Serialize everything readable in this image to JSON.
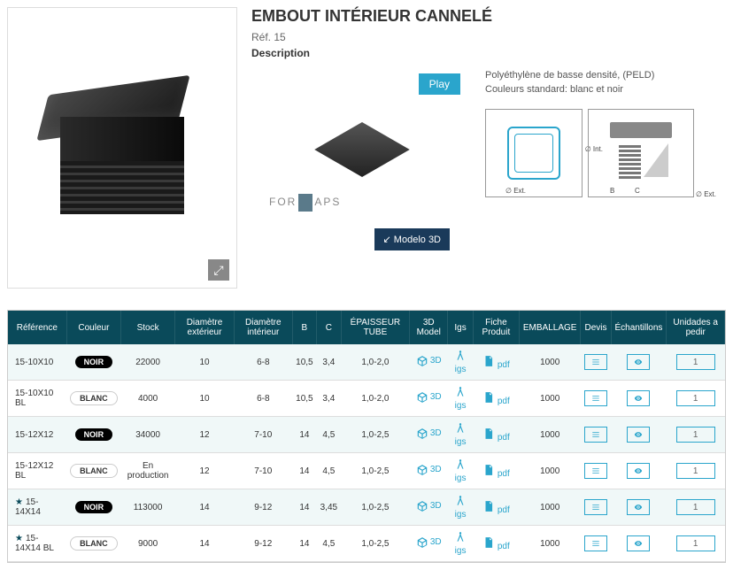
{
  "product": {
    "title": "EMBOUT INTÉRIEUR CANNELÉ",
    "ref": "Réf. 15",
    "desc_label": "Description",
    "play": "Play",
    "brand": "FOR APS",
    "model3d": "↙ Modelo 3D",
    "material": "Polyéthylène de basse densité, (PELD)",
    "colors": "Couleurs standard: blanc et noir",
    "diag": {
      "int": "∅ Int.",
      "ext": "∅ Ext.",
      "ext2": "∅ Ext.",
      "b": "B",
      "c": "C"
    }
  },
  "table": {
    "headers": [
      "Référence",
      "Couleur",
      "Stock",
      "Diamètre extérieur",
      "Diamètre intérieur",
      "B",
      "C",
      "ÉPAISSEUR TUBE",
      "3D Model",
      "Igs",
      "Fiche Produit",
      "EMBALLAGE",
      "Devis",
      "Échantillons",
      "Unidades a pedir"
    ],
    "rows": [
      {
        "star": false,
        "ref": "15-10X10",
        "color": "NOIR",
        "stock": "22000",
        "de": "10",
        "di": "6-8",
        "b": "10,5",
        "c": "3,4",
        "ep": "1,0-2,0",
        "emb": "1000",
        "qty": "1"
      },
      {
        "star": false,
        "ref": "15-10X10 BL",
        "color": "BLANC",
        "stock": "4000",
        "de": "10",
        "di": "6-8",
        "b": "10,5",
        "c": "3,4",
        "ep": "1,0-2,0",
        "emb": "1000",
        "qty": "1"
      },
      {
        "star": false,
        "ref": "15-12X12",
        "color": "NOIR",
        "stock": "34000",
        "de": "12",
        "di": "7-10",
        "b": "14",
        "c": "4,5",
        "ep": "1,0-2,5",
        "emb": "1000",
        "qty": "1"
      },
      {
        "star": false,
        "ref": "15-12X12 BL",
        "color": "BLANC",
        "stock": "En production",
        "de": "12",
        "di": "7-10",
        "b": "14",
        "c": "4,5",
        "ep": "1,0-2,5",
        "emb": "1000",
        "qty": "1"
      },
      {
        "star": true,
        "ref": "15-14X14",
        "color": "NOIR",
        "stock": "113000",
        "de": "14",
        "di": "9-12",
        "b": "14",
        "c": "3,45",
        "ep": "1,0-2,5",
        "emb": "1000",
        "qty": "1"
      },
      {
        "star": true,
        "ref": "15-14X14 BL",
        "color": "BLANC",
        "stock": "9000",
        "de": "14",
        "di": "9-12",
        "b": "14",
        "c": "4,5",
        "ep": "1,0-2,5",
        "emb": "1000",
        "qty": "1"
      }
    ],
    "labels": {
      "v3d": "3D",
      "igs": "igs",
      "pdf": "pdf"
    }
  },
  "colors": {
    "header_bg": "#0a4a5a",
    "accent": "#2aa5cc"
  }
}
